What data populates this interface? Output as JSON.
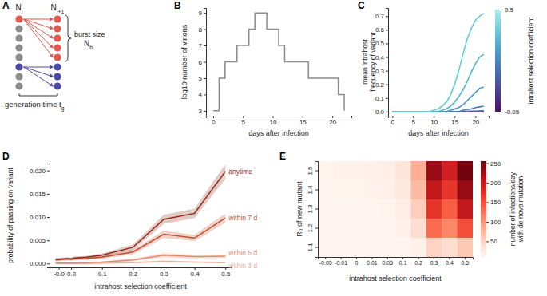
{
  "chart_data": [
    {
      "type": "diagram",
      "panel": "A",
      "left_column": [
        "#e05a4f",
        "#8c8c8c",
        "#8c8c8c",
        "#8c8c8c",
        "#8c8c8c",
        "#4b4ba6",
        "#8c8c8c",
        "#8c8c8c"
      ],
      "right_column": [
        "#e05a4f",
        "#e05a4f",
        "#e05a4f",
        "#e05a4f",
        "#e05a4f",
        "#4b4ba6",
        "#4b4ba6",
        "#4b4ba6"
      ],
      "labels": {
        "n_i": {
          "text": "N",
          "sub": "i"
        },
        "n_next": {
          "text": "N",
          "sub": "i+1"
        },
        "burst": "burst size",
        "n_b": {
          "text": "N",
          "sub": "b"
        },
        "generation": {
          "text": "generation time t",
          "sub": "g"
        }
      }
    },
    {
      "type": "line",
      "panel": "B",
      "x_label": "days after infection",
      "y_label": "log10 number of virions",
      "x": [
        0,
        1,
        2,
        3,
        4,
        5,
        6,
        7,
        8,
        9,
        10,
        11,
        12,
        13,
        14,
        15,
        16,
        17,
        18,
        19,
        20,
        21,
        22
      ],
      "series": [
        {
          "color": "#8a8a8a",
          "line_style": "step",
          "values": [
            3,
            5,
            6,
            6,
            7,
            7,
            8,
            9,
            9,
            8,
            8,
            7,
            6,
            6,
            6,
            6,
            5,
            5,
            5,
            5,
            5,
            4,
            3
          ]
        }
      ],
      "xlim": [
        -1.2,
        23.2
      ],
      "xticks": [
        0,
        5,
        10,
        15,
        20
      ],
      "ylim": [
        2.7,
        9.3
      ],
      "yticks": [
        3,
        4,
        5,
        6,
        7,
        8,
        9
      ]
    },
    {
      "type": "line",
      "panel": "C",
      "x_label": "days after infection",
      "y_label": [
        "mean intrahost",
        "frequency of variant"
      ],
      "x": [
        0,
        1,
        2,
        3,
        4,
        5,
        6,
        7,
        8,
        9,
        10,
        11,
        12,
        13,
        14,
        15,
        16,
        17,
        18,
        19,
        20,
        21,
        22
      ],
      "series": [
        {
          "color": "#5b1f6e",
          "values": [
            0,
            0,
            0,
            0,
            0,
            0,
            0,
            0,
            0,
            0,
            0,
            0,
            0,
            0,
            0,
            0,
            0,
            0,
            0,
            0,
            0,
            0,
            0
          ]
        },
        {
          "color": "#5a3d8f",
          "values": [
            0,
            0,
            0,
            0,
            0,
            0,
            0,
            0,
            0,
            0,
            0,
            0,
            0,
            0,
            0,
            0,
            0,
            0,
            0,
            0,
            0,
            0,
            0
          ]
        },
        {
          "color": "#4f5ea8",
          "values": [
            0,
            0,
            0,
            0,
            0,
            0,
            0,
            0,
            0,
            0,
            0,
            0,
            0,
            0,
            0,
            0,
            0,
            0,
            0.002,
            0.003,
            0.004,
            0.005,
            0.006
          ]
        },
        {
          "color": "#4879b8",
          "values": [
            0,
            0,
            0,
            0,
            0,
            0,
            0,
            0,
            0,
            0,
            0,
            0,
            0,
            0,
            0,
            0,
            0,
            0.01,
            0.015,
            0.02,
            0.03,
            0.035,
            0.04
          ]
        },
        {
          "color": "#4596c6",
          "values": [
            0,
            0,
            0,
            0,
            0,
            0,
            0,
            0,
            0,
            0,
            0,
            0,
            0,
            0,
            0.01,
            0.02,
            0.03,
            0.05,
            0.08,
            0.11,
            0.14,
            0.17,
            0.18
          ]
        },
        {
          "color": "#4fb3d2",
          "values": [
            0,
            0,
            0,
            0,
            0,
            0,
            0,
            0,
            0,
            0,
            0,
            0,
            0.01,
            0.02,
            0.04,
            0.07,
            0.11,
            0.16,
            0.22,
            0.29,
            0.35,
            0.4,
            0.42
          ]
        },
        {
          "color": "#62c9d8",
          "values": [
            0,
            0,
            0,
            0,
            0,
            0,
            0,
            0,
            0,
            0,
            0.01,
            0.02,
            0.04,
            0.07,
            0.12,
            0.2,
            0.3,
            0.42,
            0.53,
            0.61,
            0.67,
            0.7,
            0.72
          ]
        }
      ],
      "xlim": [
        -1,
        23.2
      ],
      "xticks": [
        0,
        5,
        10,
        15,
        20
      ],
      "ylim": [
        -0.03,
        0.76
      ],
      "yticks": [
        {
          "value": 0,
          "label": "0.0"
        },
        0.1,
        0.2,
        0.3,
        0.4,
        0.5,
        0.6,
        0.7
      ],
      "colorbar": {
        "range": [
          -0.05,
          0.5
        ],
        "ticks": [
          -0.05,
          0.5
        ],
        "label": "intrahost selection coefficient",
        "colors": [
          "#4b0f5f",
          "#4f3f94",
          "#4771b3",
          "#4aa0cb",
          "#6cc9d8",
          "#b0ecec"
        ]
      }
    },
    {
      "type": "line",
      "panel": "D",
      "x_label": "intrahost selection coefficient",
      "y_label": "probability of passing on variant",
      "x": [
        -0.05,
        -0.01,
        0,
        0.01,
        0.05,
        0.1,
        0.2,
        0.3,
        0.4,
        0.5
      ],
      "series": [
        {
          "name": "anytime",
          "color": "#8b2a17",
          "values": [
            0.0009,
            0.0011,
            0.001,
            0.0012,
            0.0014,
            0.0018,
            0.0035,
            0.0095,
            0.0108,
            0.0198
          ],
          "lower": [
            0.0006,
            0.0008,
            0.0007,
            0.0009,
            0.0011,
            0.0014,
            0.0029,
            0.0085,
            0.0098,
            0.0182
          ],
          "upper": [
            0.0012,
            0.0014,
            0.0013,
            0.0015,
            0.0017,
            0.0022,
            0.0041,
            0.0105,
            0.0118,
            0.0214
          ]
        },
        {
          "name": "within 7 d",
          "color": "#c0502f",
          "values": [
            0.0008,
            0.001,
            0.0009,
            0.001,
            0.0011,
            0.0014,
            0.0025,
            0.0063,
            0.0055,
            0.0098
          ],
          "lower": [
            0.0005,
            0.0007,
            0.0006,
            0.0007,
            0.0008,
            0.0011,
            0.002,
            0.0055,
            0.0048,
            0.0088
          ],
          "upper": [
            0.0011,
            0.0013,
            0.0012,
            0.0013,
            0.0014,
            0.0017,
            0.003,
            0.0071,
            0.0062,
            0.0108
          ]
        },
        {
          "name": "within 5 d",
          "color": "#e08a70",
          "values": [
            0.0001,
            0.0001,
            0.0001,
            0.0001,
            0.0002,
            0.0003,
            0.0008,
            0.0018,
            0.0015,
            0.0016
          ],
          "lower": [
            0,
            0,
            0,
            0,
            0.0001,
            0.0001,
            0.0005,
            0.0013,
            0.0011,
            0.0012
          ],
          "upper": [
            0.0002,
            0.0002,
            0.0002,
            0.0002,
            0.0003,
            0.0005,
            0.0011,
            0.0023,
            0.0019,
            0.002
          ]
        },
        {
          "name": "within 3 d",
          "color": "#f0ada0",
          "values": [
            0,
            0,
            0,
            0,
            0,
            0.0001,
            0.0002,
            0.0005,
            0.0003,
            0.0002
          ],
          "lower": [
            0,
            0,
            0,
            0,
            0,
            0,
            0.0001,
            0.0003,
            0.0002,
            0.0001
          ],
          "upper": [
            0.0001,
            0.0001,
            0.0001,
            0.0001,
            0.0001,
            0.0002,
            0.0004,
            0.0008,
            0.0005,
            0.0004
          ]
        }
      ],
      "xlim": [
        -0.07,
        0.52
      ],
      "xticks": [
        {
          "value": -0.04,
          "label": "-0.0"
        },
        {
          "value": 0,
          "label": "0.0"
        },
        0.1,
        0.2,
        0.3,
        0.4,
        0.5
      ],
      "ylim": [
        -0.0008,
        0.0215
      ],
      "yticks": [
        {
          "value": 0,
          "label": "0.000"
        },
        {
          "value": 0.005,
          "label": "0.005"
        },
        {
          "value": 0.01,
          "label": "0.010"
        },
        {
          "value": 0.015,
          "label": "0.015"
        },
        {
          "value": 0.02,
          "label": "0.020"
        }
      ]
    },
    {
      "type": "heatmap",
      "panel": "E",
      "x_label": "intrahost selection coefficient",
      "y_label": "R₀ of new mutant",
      "x_categories": [
        "-0.05",
        "-0.01",
        "0",
        "0.01",
        "0.05",
        "0.1",
        "0.2",
        "0.3",
        "0.4",
        "0.5"
      ],
      "y_categories": [
        "1.5",
        "1.4",
        "1.3",
        "1.2",
        "1.1"
      ],
      "cells": [
        [
          12,
          14,
          14,
          16,
          20,
          32,
          80,
          230,
          190,
          250
        ],
        [
          10,
          12,
          12,
          14,
          17,
          27,
          70,
          200,
          170,
          230
        ],
        [
          8,
          9,
          9,
          11,
          13,
          21,
          55,
          170,
          140,
          200
        ],
        [
          6,
          7,
          7,
          9,
          11,
          16,
          40,
          130,
          110,
          150
        ],
        [
          3,
          3,
          3,
          4,
          5,
          7,
          16,
          50,
          40,
          60
        ]
      ],
      "colorbar": {
        "range": [
          10,
          255
        ],
        "ticks": [
          50,
          100,
          150,
          200,
          250
        ],
        "label": [
          "number of infections/day",
          "with de novo mutation"
        ]
      }
    }
  ]
}
